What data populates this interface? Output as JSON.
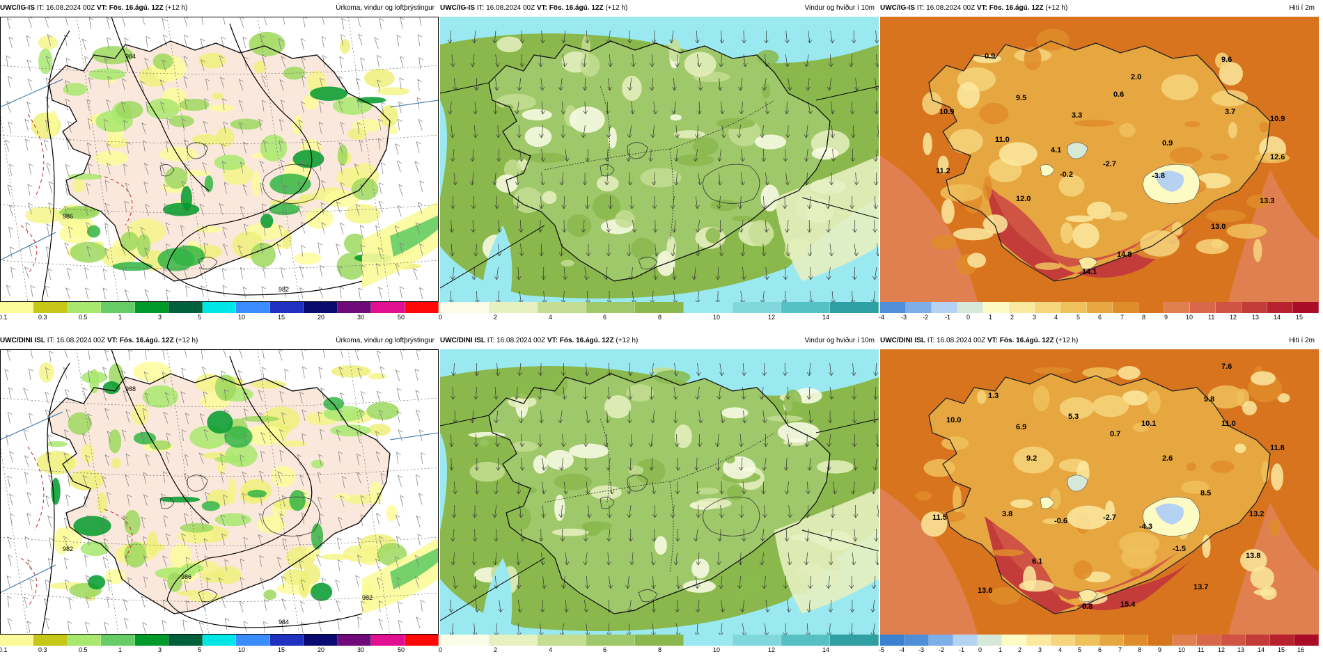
{
  "rows": [
    {
      "model": "UWC/IG-IS",
      "panels": [
        {
          "id": "precip",
          "model": "UWC/IG-IS",
          "it": "IT: 16.08.2024 00Z",
          "vt": "VT: Fös. 16.ágú. 12Z",
          "lead": "(+12 h)",
          "title": "Úrkoma, vindur og loftþrýstingur",
          "legend_colors": [
            "#fbfb9a",
            "#c7c717",
            "#a8e86e",
            "#66cc66",
            "#009a2a",
            "#00603c",
            "#00e5e5",
            "#3a8cff",
            "#2030c0",
            "#0a0a70",
            "#700a7a",
            "#e01090",
            "#ff0808"
          ],
          "legend_labels": [
            "0.1",
            "0.3",
            "0.5",
            "1",
            "3",
            "5",
            "10",
            "15",
            "20",
            "30",
            "50"
          ],
          "pressure_labels": [
            "984",
            "982",
            "986"
          ]
        },
        {
          "id": "wind",
          "model": "UWC/IG-IS",
          "it": "IT: 16.08.2024 00Z",
          "vt": "VT: Fös. 16.ágú. 12Z",
          "lead": "(+12 h)",
          "title": "Vindur og hviður í 10m",
          "legend_colors": [
            "#fbfde9",
            "#e6f0c0",
            "#c3dd92",
            "#9fc86a",
            "#8ab84c",
            "#9be9f0",
            "#80d8dc",
            "#56c0c4",
            "#2ea0a4"
          ],
          "legend_labels": [
            "0",
            "2",
            "4",
            "6",
            "8",
            "10",
            "12",
            "14"
          ]
        },
        {
          "id": "temp",
          "model": "UWC/IG-IS",
          "it": "IT: 16.08.2024 00Z",
          "vt": "VT: Fös. 16.ágú. 12Z",
          "lead": "(+12 h)",
          "title": "Hiti í 2m",
          "legend_colors": [
            "#4e8fd8",
            "#7eaee8",
            "#b6d2f2",
            "#d6e8d8",
            "#fdfbc4",
            "#fbe9a0",
            "#f6d57c",
            "#efc15c",
            "#e6a640",
            "#df8c2a",
            "#d9741e",
            "#e08050",
            "#d9684a",
            "#d05444",
            "#c43c3a",
            "#b8222e",
            "#a80c26"
          ],
          "legend_labels": [
            "-4",
            "-3",
            "-2",
            "-1",
            "0",
            "1",
            "2",
            "3",
            "4",
            "5",
            "6",
            "7",
            "8",
            "9",
            "10",
            "11",
            "12",
            "13",
            "14",
            "15"
          ],
          "temps": [
            "0.9",
            "9.6",
            "2.0",
            "9.5",
            "0.6",
            "10.9",
            "3.3",
            "3.7",
            "10.9",
            "11.0",
            "4.1",
            "0.9",
            "11.2",
            "-0.2",
            "-2.7",
            "-3.8",
            "12.6",
            "12.0",
            "13.3",
            "13.0",
            "14.8",
            "14.1"
          ]
        }
      ]
    },
    {
      "model": "UWC/DINI ISL",
      "panels": [
        {
          "id": "precip",
          "model": "UWC/DINI ISL",
          "it": "IT: 16.08.2024 00Z",
          "vt": "VT: Fös. 16.ágú. 12Z",
          "lead": "(+12 h)",
          "title": "Úrkoma, vindur og loftþrýstingur",
          "legend_colors": [
            "#fbfb9a",
            "#c7c717",
            "#a8e86e",
            "#66cc66",
            "#009a2a",
            "#00603c",
            "#00e5e5",
            "#3a8cff",
            "#2030c0",
            "#0a0a70",
            "#700a7a",
            "#e01090",
            "#ff0808"
          ],
          "legend_labels": [
            "0.1",
            "0.3",
            "0.5",
            "1",
            "3",
            "5",
            "10",
            "15",
            "20",
            "30",
            "50"
          ],
          "pressure_labels": [
            "988",
            "984",
            "982",
            "986",
            "982"
          ]
        },
        {
          "id": "wind",
          "model": "UWC/DINI ISL",
          "it": "IT: 16.08.2024 00Z",
          "vt": "VT: Fös. 16.ágú. 12Z",
          "lead": "(+12 h)",
          "title": "Vindur og hviður í 10m",
          "legend_colors": [
            "#fbfde9",
            "#e6f0c0",
            "#c3dd92",
            "#9fc86a",
            "#8ab84c",
            "#9be9f0",
            "#80d8dc",
            "#56c0c4",
            "#2ea0a4"
          ],
          "legend_labels": [
            "0",
            "2",
            "4",
            "6",
            "8",
            "10",
            "12",
            "14"
          ]
        },
        {
          "id": "temp",
          "model": "UWC/DINI ISL",
          "it": "IT: 16.08.2024 00Z",
          "vt": "VT: Fös. 16.ágú. 12Z",
          "lead": "(+12 h)",
          "title": "Hiti í 2m",
          "legend_colors": [
            "#3c80d0",
            "#4e8fd8",
            "#7eaee8",
            "#b6d2f2",
            "#d6e8d8",
            "#fdfbc4",
            "#fbe9a0",
            "#f6d57c",
            "#efc15c",
            "#e6a640",
            "#df8c2a",
            "#d9741e",
            "#e08050",
            "#d9684a",
            "#d05444",
            "#c43c3a",
            "#b8222e",
            "#a80c26"
          ],
          "legend_labels": [
            "-5",
            "-4",
            "-3",
            "-2",
            "-1",
            "0",
            "1",
            "2",
            "3",
            "4",
            "5",
            "6",
            "7",
            "8",
            "9",
            "10",
            "11",
            "12",
            "13",
            "14",
            "15",
            "16"
          ],
          "temps": [
            "7.6",
            "1.3",
            "9.8",
            "10.0",
            "5.3",
            "10.1",
            "6.9",
            "0.7",
            "11.0",
            "2.6",
            "11.8",
            "9.2",
            "8.5",
            "11.5",
            "3.8",
            "-0.6",
            "-2.7",
            "-4.3",
            "13.2",
            "-1.5",
            "6.1",
            "13.8",
            "13.6",
            "13.7",
            "0.8",
            "15.4"
          ]
        }
      ]
    }
  ]
}
